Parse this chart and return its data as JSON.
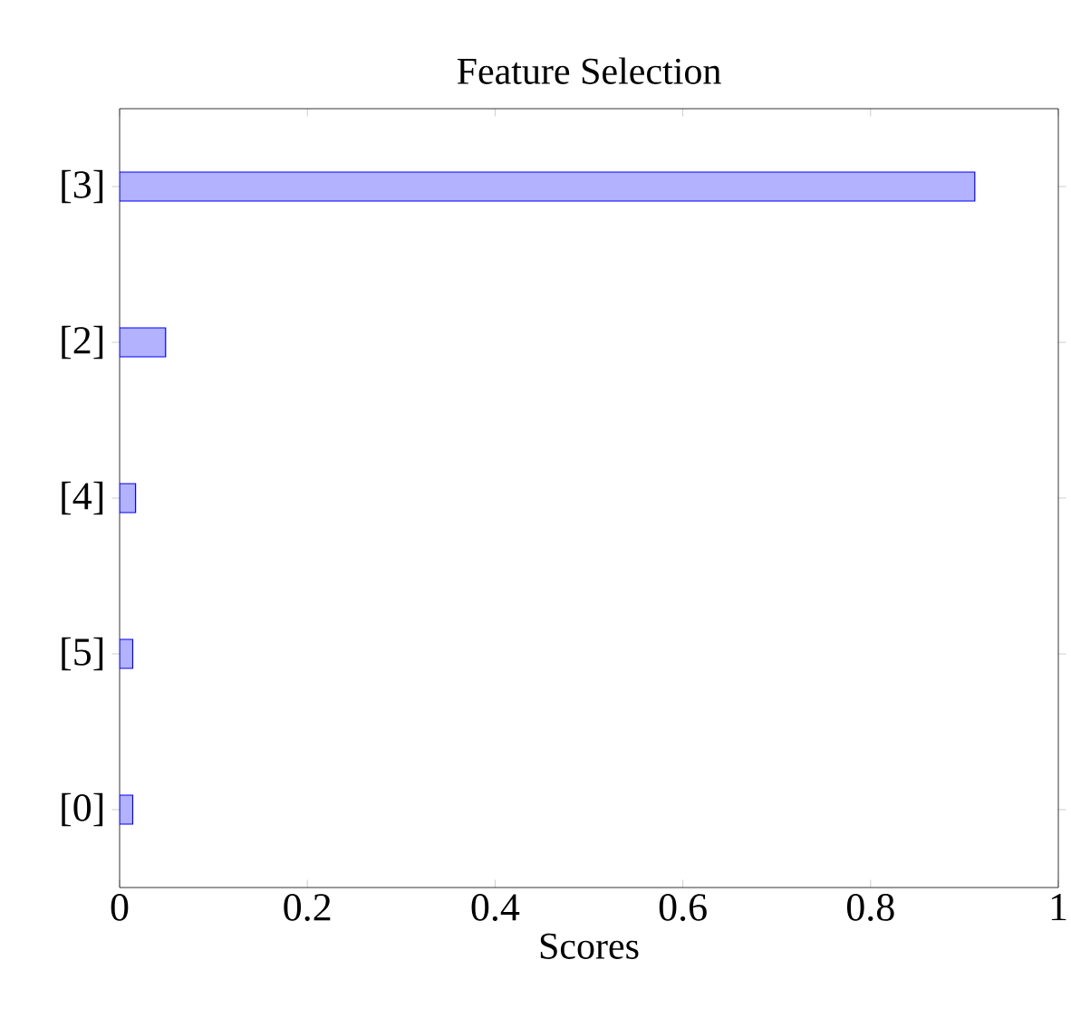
{
  "chart_data": {
    "type": "bar",
    "orientation": "horizontal",
    "title": "Feature Selection",
    "xlabel": "Scores",
    "categories": [
      "[3]",
      "[2]",
      "[4]",
      "[5]",
      "[0]"
    ],
    "values": [
      0.911,
      0.049,
      0.017,
      0.014,
      0.014
    ],
    "color": "#b2b2ff",
    "xlim": [
      0,
      1
    ],
    "xticks": [
      0,
      0.2,
      0.4,
      0.6,
      0.8,
      1
    ]
  }
}
